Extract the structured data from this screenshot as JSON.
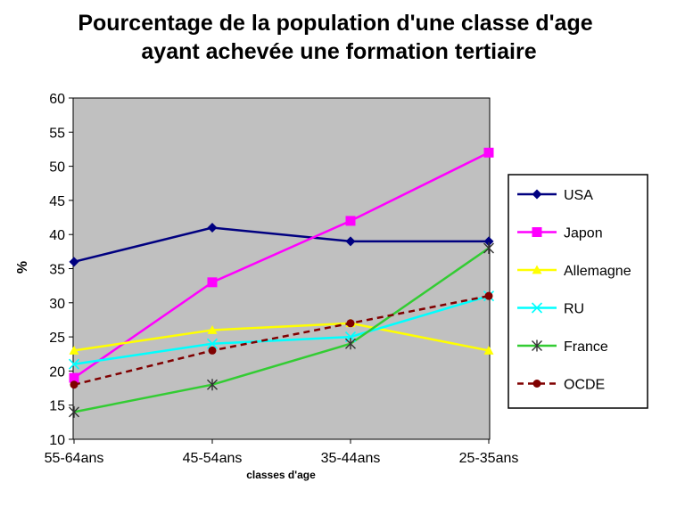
{
  "chart_data": {
    "type": "line",
    "title_lines": [
      "Pourcentage de la population d'une classe d'age",
      "ayant achevée une formation tertiaire"
    ],
    "xlabel": "classes d'age",
    "ylabel": "%",
    "categories": [
      "55-64ans",
      "45-54ans",
      "35-44ans",
      "25-35ans"
    ],
    "ylim": [
      10,
      60
    ],
    "yticks": [
      10,
      15,
      20,
      25,
      30,
      35,
      40,
      45,
      50,
      55,
      60
    ],
    "grid": false,
    "plot_background": "#c0c0c0",
    "legend_placement": "right",
    "series": [
      {
        "name": "USA",
        "values": [
          36,
          41,
          39,
          39
        ],
        "color": "#000080",
        "marker": "diamond",
        "dash": false
      },
      {
        "name": "Japon",
        "values": [
          19,
          33,
          42,
          52
        ],
        "color": "#ff00ff",
        "marker": "square",
        "dash": false
      },
      {
        "name": "Allemagne",
        "values": [
          23,
          26,
          27,
          23
        ],
        "color": "#ffff00",
        "marker": "triangle",
        "dash": false
      },
      {
        "name": "RU",
        "values": [
          21,
          24,
          25,
          31
        ],
        "color": "#00ffff",
        "marker": "x",
        "dash": false
      },
      {
        "name": "France",
        "values": [
          14,
          18,
          24,
          38
        ],
        "color": "#33cc33",
        "marker": "star",
        "dash": false
      },
      {
        "name": "OCDE",
        "values": [
          18,
          23,
          27,
          31
        ],
        "color": "#800000",
        "marker": "circle",
        "dash": true
      }
    ]
  }
}
